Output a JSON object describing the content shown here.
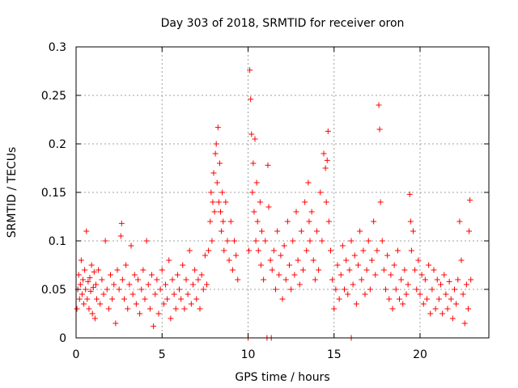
{
  "chart_data": {
    "type": "scatter",
    "title": "Day 303 of 2018, SRMTID for receiver oron",
    "xlabel": "GPS time / hours",
    "ylabel": "SRMTID / TECUs",
    "xlim": [
      0,
      24
    ],
    "ylim": [
      0,
      0.3
    ],
    "xticks": [
      0,
      5,
      10,
      15,
      20
    ],
    "xtick_labels": [
      "0",
      "5",
      "10",
      "15",
      "20"
    ],
    "yticks": [
      0,
      0.05,
      0.1,
      0.15,
      0.2,
      0.25,
      0.3
    ],
    "ytick_labels": [
      "0",
      "0.05",
      "0.1",
      "0.15",
      "0.2",
      "0.25",
      "0.3"
    ],
    "grid": true,
    "marker": "plus",
    "series_color": "#ff0000",
    "axis_color": "#000000",
    "grid_color": "#a0a0a0",
    "series": [
      {
        "name": "SRMTID",
        "points": [
          [
            0.05,
            0.03
          ],
          [
            0.1,
            0.05
          ],
          [
            0.15,
            0.065
          ],
          [
            0.2,
            0.04
          ],
          [
            0.25,
            0.055
          ],
          [
            0.3,
            0.08
          ],
          [
            0.35,
            0.045
          ],
          [
            0.4,
            0.06
          ],
          [
            0.45,
            0.035
          ],
          [
            0.5,
            0.07
          ],
          [
            0.55,
            0.05
          ],
          [
            0.6,
            0.11
          ],
          [
            0.65,
            0.04
          ],
          [
            0.7,
            0.058
          ],
          [
            0.75,
            0.03
          ],
          [
            0.8,
            0.062
          ],
          [
            0.85,
            0.048
          ],
          [
            0.9,
            0.075
          ],
          [
            0.95,
            0.025
          ],
          [
            1.0,
            0.052
          ],
          [
            1.05,
            0.068
          ],
          [
            1.1,
            0.02
          ],
          [
            1.15,
            0.055
          ],
          [
            1.2,
            0.04
          ],
          [
            1.3,
            0.07
          ],
          [
            1.4,
            0.035
          ],
          [
            1.5,
            0.06
          ],
          [
            1.6,
            0.045
          ],
          [
            1.7,
            0.1
          ],
          [
            1.8,
            0.05
          ],
          [
            1.9,
            0.03
          ],
          [
            2.0,
            0.065
          ],
          [
            2.1,
            0.04
          ],
          [
            2.2,
            0.055
          ],
          [
            2.3,
            0.015
          ],
          [
            2.4,
            0.07
          ],
          [
            2.5,
            0.05
          ],
          [
            2.6,
            0.105
          ],
          [
            2.65,
            0.118
          ],
          [
            2.7,
            0.06
          ],
          [
            2.8,
            0.04
          ],
          [
            2.9,
            0.075
          ],
          [
            3.0,
            0.03
          ],
          [
            3.1,
            0.055
          ],
          [
            3.2,
            0.095
          ],
          [
            3.3,
            0.045
          ],
          [
            3.4,
            0.065
          ],
          [
            3.5,
            0.035
          ],
          [
            3.6,
            0.06
          ],
          [
            3.7,
            0.025
          ],
          [
            3.8,
            0.05
          ],
          [
            3.9,
            0.07
          ],
          [
            4.0,
            0.04
          ],
          [
            4.1,
            0.1
          ],
          [
            4.2,
            0.055
          ],
          [
            4.3,
            0.03
          ],
          [
            4.4,
            0.065
          ],
          [
            4.5,
            0.012
          ],
          [
            4.6,
            0.045
          ],
          [
            4.7,
            0.06
          ],
          [
            4.8,
            0.025
          ],
          [
            4.9,
            0.05
          ],
          [
            5.0,
            0.07
          ],
          [
            5.1,
            0.035
          ],
          [
            5.2,
            0.055
          ],
          [
            5.3,
            0.04
          ],
          [
            5.4,
            0.08
          ],
          [
            5.5,
            0.02
          ],
          [
            5.6,
            0.06
          ],
          [
            5.7,
            0.045
          ],
          [
            5.8,
            0.03
          ],
          [
            5.9,
            0.065
          ],
          [
            6.0,
            0.05
          ],
          [
            6.1,
            0.04
          ],
          [
            6.2,
            0.075
          ],
          [
            6.3,
            0.03
          ],
          [
            6.4,
            0.06
          ],
          [
            6.5,
            0.045
          ],
          [
            6.6,
            0.09
          ],
          [
            6.7,
            0.035
          ],
          [
            6.8,
            0.055
          ],
          [
            6.9,
            0.07
          ],
          [
            7.0,
            0.04
          ],
          [
            7.1,
            0.06
          ],
          [
            7.2,
            0.03
          ],
          [
            7.3,
            0.065
          ],
          [
            7.4,
            0.05
          ],
          [
            7.5,
            0.085
          ],
          [
            7.6,
            0.055
          ],
          [
            7.7,
            0.09
          ],
          [
            7.8,
            0.12
          ],
          [
            7.85,
            0.15
          ],
          [
            7.9,
            0.1
          ],
          [
            7.95,
            0.14
          ],
          [
            8.0,
            0.17
          ],
          [
            8.05,
            0.13
          ],
          [
            8.1,
            0.19
          ],
          [
            8.15,
            0.2
          ],
          [
            8.2,
            0.16
          ],
          [
            8.25,
            0.217
          ],
          [
            8.3,
            0.14
          ],
          [
            8.35,
            0.18
          ],
          [
            8.4,
            0.13
          ],
          [
            8.45,
            0.11
          ],
          [
            8.5,
            0.15
          ],
          [
            8.55,
            0.12
          ],
          [
            8.6,
            0.09
          ],
          [
            8.7,
            0.14
          ],
          [
            8.8,
            0.1
          ],
          [
            8.9,
            0.08
          ],
          [
            9.0,
            0.12
          ],
          [
            9.1,
            0.07
          ],
          [
            9.2,
            0.1
          ],
          [
            9.3,
            0.085
          ],
          [
            9.4,
            0.06
          ],
          [
            10.0,
            0.0
          ],
          [
            10.05,
            0.09
          ],
          [
            10.1,
            0.276
          ],
          [
            10.15,
            0.246
          ],
          [
            10.2,
            0.21
          ],
          [
            10.25,
            0.15
          ],
          [
            10.3,
            0.18
          ],
          [
            10.35,
            0.13
          ],
          [
            10.4,
            0.205
          ],
          [
            10.45,
            0.1
          ],
          [
            10.5,
            0.16
          ],
          [
            10.55,
            0.12
          ],
          [
            10.6,
            0.09
          ],
          [
            10.7,
            0.14
          ],
          [
            10.75,
            0.075
          ],
          [
            10.8,
            0.11
          ],
          [
            10.9,
            0.06
          ],
          [
            11.0,
            0.1
          ],
          [
            11.1,
            0.0
          ],
          [
            11.15,
            0.178
          ],
          [
            11.2,
            0.135
          ],
          [
            11.3,
            0.08
          ],
          [
            11.35,
            0.0
          ],
          [
            11.4,
            0.07
          ],
          [
            11.5,
            0.09
          ],
          [
            11.6,
            0.05
          ],
          [
            11.7,
            0.11
          ],
          [
            11.8,
            0.065
          ],
          [
            11.9,
            0.085
          ],
          [
            12.0,
            0.04
          ],
          [
            12.1,
            0.095
          ],
          [
            12.2,
            0.06
          ],
          [
            12.3,
            0.12
          ],
          [
            12.4,
            0.075
          ],
          [
            12.5,
            0.05
          ],
          [
            12.6,
            0.1
          ],
          [
            12.7,
            0.065
          ],
          [
            12.8,
            0.13
          ],
          [
            12.9,
            0.08
          ],
          [
            13.0,
            0.055
          ],
          [
            13.1,
            0.11
          ],
          [
            13.2,
            0.07
          ],
          [
            13.3,
            0.14
          ],
          [
            13.4,
            0.09
          ],
          [
            13.5,
            0.16
          ],
          [
            13.55,
            0.12
          ],
          [
            13.6,
            0.1
          ],
          [
            13.7,
            0.13
          ],
          [
            13.8,
            0.08
          ],
          [
            13.9,
            0.06
          ],
          [
            14.0,
            0.11
          ],
          [
            14.1,
            0.07
          ],
          [
            14.2,
            0.15
          ],
          [
            14.3,
            0.1
          ],
          [
            14.4,
            0.19
          ],
          [
            14.5,
            0.175
          ],
          [
            14.55,
            0.14
          ],
          [
            14.6,
            0.183
          ],
          [
            14.65,
            0.213
          ],
          [
            14.7,
            0.12
          ],
          [
            14.8,
            0.09
          ],
          [
            14.9,
            0.06
          ],
          [
            15.0,
            0.03
          ],
          [
            15.1,
            0.05
          ],
          [
            15.2,
            0.075
          ],
          [
            15.3,
            0.04
          ],
          [
            15.4,
            0.065
          ],
          [
            15.5,
            0.095
          ],
          [
            15.6,
            0.05
          ],
          [
            15.7,
            0.08
          ],
          [
            15.8,
            0.045
          ],
          [
            15.9,
            0.07
          ],
          [
            16.0,
            0.0
          ],
          [
            16.0,
            0.1
          ],
          [
            16.1,
            0.055
          ],
          [
            16.2,
            0.085
          ],
          [
            16.3,
            0.035
          ],
          [
            16.4,
            0.075
          ],
          [
            16.5,
            0.11
          ],
          [
            16.6,
            0.06
          ],
          [
            16.7,
            0.09
          ],
          [
            16.8,
            0.045
          ],
          [
            16.9,
            0.07
          ],
          [
            17.0,
            0.1
          ],
          [
            17.1,
            0.05
          ],
          [
            17.2,
            0.08
          ],
          [
            17.3,
            0.12
          ],
          [
            17.4,
            0.065
          ],
          [
            17.5,
            0.09
          ],
          [
            17.6,
            0.24
          ],
          [
            17.65,
            0.215
          ],
          [
            17.7,
            0.14
          ],
          [
            17.8,
            0.1
          ],
          [
            17.9,
            0.07
          ],
          [
            18.0,
            0.05
          ],
          [
            18.1,
            0.085
          ],
          [
            18.2,
            0.04
          ],
          [
            18.3,
            0.065
          ],
          [
            18.4,
            0.03
          ],
          [
            18.5,
            0.075
          ],
          [
            18.6,
            0.05
          ],
          [
            18.7,
            0.09
          ],
          [
            18.8,
            0.04
          ],
          [
            18.9,
            0.06
          ],
          [
            19.0,
            0.035
          ],
          [
            19.1,
            0.07
          ],
          [
            19.2,
            0.045
          ],
          [
            19.3,
            0.055
          ],
          [
            19.4,
            0.148
          ],
          [
            19.45,
            0.12
          ],
          [
            19.5,
            0.09
          ],
          [
            19.6,
            0.11
          ],
          [
            19.7,
            0.07
          ],
          [
            19.8,
            0.05
          ],
          [
            19.9,
            0.08
          ],
          [
            20.0,
            0.045
          ],
          [
            20.1,
            0.065
          ],
          [
            20.2,
            0.035
          ],
          [
            20.3,
            0.06
          ],
          [
            20.4,
            0.04
          ],
          [
            20.5,
            0.075
          ],
          [
            20.6,
            0.025
          ],
          [
            20.7,
            0.05
          ],
          [
            20.8,
            0.07
          ],
          [
            20.9,
            0.03
          ],
          [
            21.0,
            0.06
          ],
          [
            21.1,
            0.04
          ],
          [
            21.2,
            0.055
          ],
          [
            21.3,
            0.025
          ],
          [
            21.4,
            0.065
          ],
          [
            21.5,
            0.045
          ],
          [
            21.6,
            0.03
          ],
          [
            21.7,
            0.058
          ],
          [
            21.8,
            0.04
          ],
          [
            21.9,
            0.02
          ],
          [
            22.0,
            0.05
          ],
          [
            22.1,
            0.035
          ],
          [
            22.2,
            0.06
          ],
          [
            22.3,
            0.12
          ],
          [
            22.4,
            0.08
          ],
          [
            22.5,
            0.045
          ],
          [
            22.6,
            0.015
          ],
          [
            22.7,
            0.055
          ],
          [
            22.8,
            0.03
          ],
          [
            22.85,
            0.11
          ],
          [
            22.9,
            0.142
          ],
          [
            22.95,
            0.06
          ]
        ]
      }
    ]
  }
}
